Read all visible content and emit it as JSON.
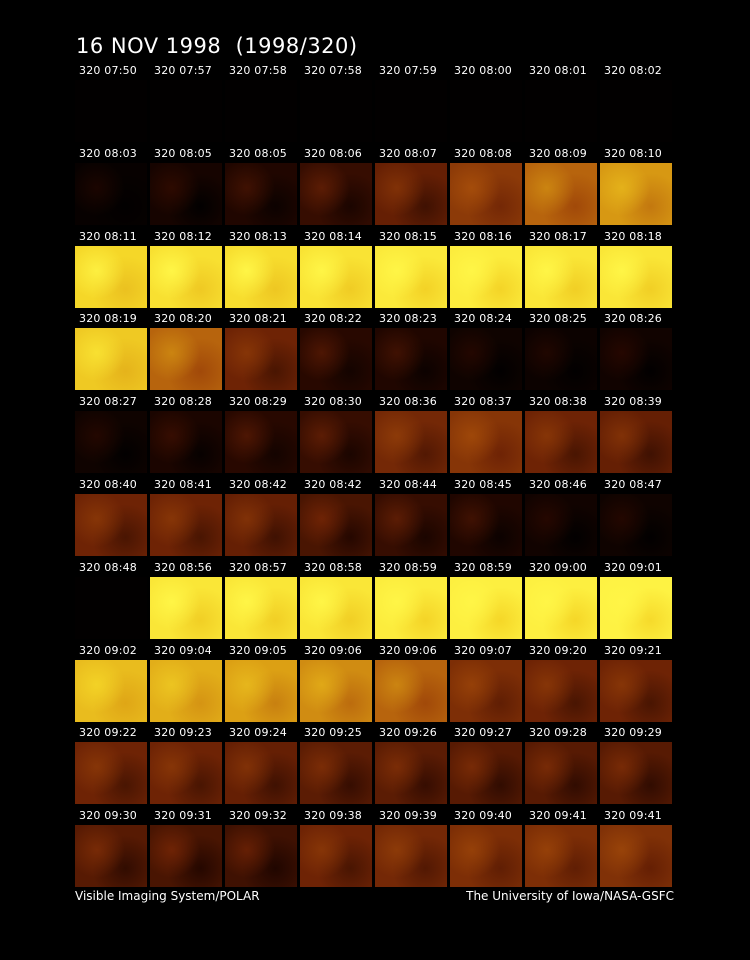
{
  "title": "16 NOV 1998  (1998/320)",
  "footer": {
    "left": "Visible Imaging System/POLAR",
    "right": "The University of Iowa/NASA-GSFC"
  },
  "colors": {
    "background": "#000000",
    "text": "#ffffff",
    "dim": "#1a0400",
    "mid": "#7a2a05",
    "bright": "#e8b820",
    "saturated": "#fff040"
  },
  "rows": [
    [
      "320 07:50",
      "320 07:57",
      "320 07:58",
      "320 07:58",
      "320 07:59",
      "320 08:00",
      "320 08:01",
      "320 08:02"
    ],
    [
      "320 08:03",
      "320 08:05",
      "320 08:05",
      "320 08:06",
      "320 08:07",
      "320 08:08",
      "320 08:09",
      "320 08:10"
    ],
    [
      "320 08:11",
      "320 08:12",
      "320 08:13",
      "320 08:14",
      "320 08:15",
      "320 08:16",
      "320 08:17",
      "320 08:18"
    ],
    [
      "320 08:19",
      "320 08:20",
      "320 08:21",
      "320 08:22",
      "320 08:23",
      "320 08:24",
      "320 08:25",
      "320 08:26"
    ],
    [
      "320 08:27",
      "320 08:28",
      "320 08:29",
      "320 08:30",
      "320 08:36",
      "320 08:37",
      "320 08:38",
      "320 08:39"
    ],
    [
      "320 08:40",
      "320 08:41",
      "320 08:42",
      "320 08:42",
      "320 08:44",
      "320 08:45",
      "320 08:46",
      "320 08:47"
    ],
    [
      "320 08:48",
      "320 08:56",
      "320 08:57",
      "320 08:58",
      "320 08:59",
      "320 08:59",
      "320 09:00",
      "320 09:01"
    ],
    [
      "320 09:02",
      "320 09:04",
      "320 09:05",
      "320 09:06",
      "320 09:06",
      "320 09:07",
      "320 09:20",
      "320 09:21"
    ],
    [
      "320 09:22",
      "320 09:23",
      "320 09:24",
      "320 09:25",
      "320 09:26",
      "320 09:27",
      "320 09:28",
      "320 09:29"
    ],
    [
      "320 09:30",
      "320 09:31",
      "320 09:32",
      "320 09:38",
      "320 09:39",
      "320 09:40",
      "320 09:41",
      "320 09:41"
    ]
  ],
  "brightness": [
    [
      0.0,
      0.0,
      0.0,
      0.0,
      0.0,
      0.0,
      0.0,
      0.0
    ],
    [
      0.02,
      0.08,
      0.12,
      0.18,
      0.28,
      0.4,
      0.55,
      0.68
    ],
    [
      0.9,
      0.93,
      0.92,
      0.94,
      0.96,
      0.97,
      0.95,
      0.95
    ],
    [
      0.85,
      0.55,
      0.3,
      0.15,
      0.12,
      0.05,
      0.04,
      0.06
    ],
    [
      0.05,
      0.1,
      0.15,
      0.18,
      0.32,
      0.38,
      0.3,
      0.28
    ],
    [
      0.3,
      0.3,
      0.28,
      0.22,
      0.18,
      0.12,
      0.06,
      0.05
    ],
    [
      0.0,
      0.95,
      0.95,
      0.95,
      0.97,
      0.98,
      0.98,
      0.99
    ],
    [
      0.8,
      0.75,
      0.7,
      0.65,
      0.55,
      0.35,
      0.3,
      0.3
    ],
    [
      0.3,
      0.3,
      0.28,
      0.26,
      0.26,
      0.25,
      0.25,
      0.25
    ],
    [
      0.25,
      0.22,
      0.2,
      0.3,
      0.32,
      0.35,
      0.35,
      0.36
    ]
  ]
}
